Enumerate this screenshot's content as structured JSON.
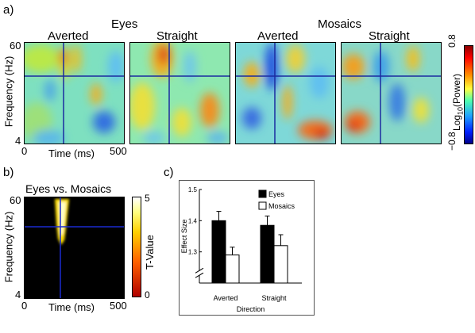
{
  "panels": {
    "a": {
      "label": "a)",
      "groups": [
        "Eyes",
        "Mosaics"
      ],
      "conditions": [
        "Averted",
        "Straight",
        "Averted",
        "Straight"
      ],
      "y_axis_title": "Frequency (Hz)",
      "y_ticks": [
        "60",
        "4"
      ],
      "x_axis_title": "Time (ms)",
      "x_ticks": [
        "0",
        "500"
      ],
      "colorbar": {
        "title_prefix": "Log",
        "title_sub": "10",
        "title_suffix": "(Power)",
        "max": "0.8",
        "min": "−0.8"
      }
    },
    "b": {
      "label": "b)",
      "title": "Eyes vs. Mosaics",
      "y_axis_title": "Frequency (Hz)",
      "y_ticks": [
        "60",
        "4"
      ],
      "x_axis_title": "Time (ms)",
      "x_ticks": [
        "0",
        "500"
      ],
      "colorbar": {
        "title": "T-Value",
        "max": "5",
        "min": "0"
      }
    },
    "c": {
      "label": "c)"
    }
  },
  "chart_data": {
    "type": "bar",
    "categories": [
      "Averted",
      "Straight"
    ],
    "series": [
      {
        "name": "Eyes",
        "values": [
          1.4,
          1.385
        ],
        "error": [
          0.03,
          0.03
        ],
        "color": "#000000"
      },
      {
        "name": "Mosaics",
        "values": [
          1.29,
          1.32
        ],
        "error": [
          0.025,
          0.035
        ],
        "color": "#ffffff"
      }
    ],
    "ylabel": "Effect Size",
    "xlabel": "Direction",
    "yticks": [
      "1.3",
      "1.4",
      "1.5"
    ],
    "ylim": [
      1.2,
      1.5
    ],
    "axis_break": true,
    "legend": "top-right"
  }
}
